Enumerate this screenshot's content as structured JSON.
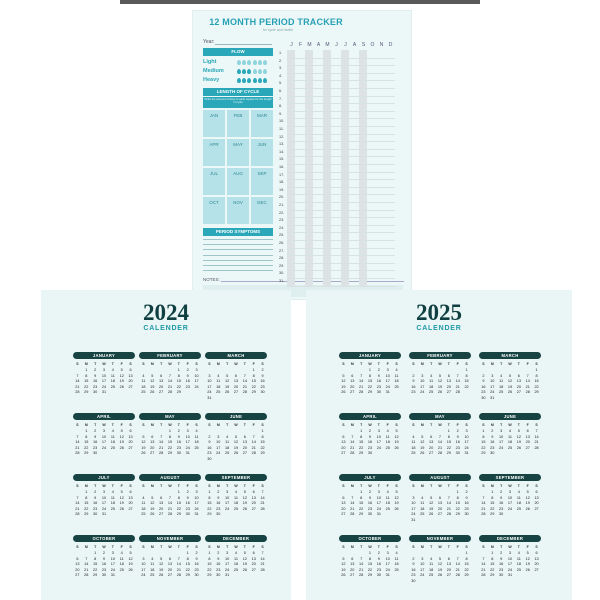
{
  "tracker": {
    "title": "12 MONTH PERIOD TRACKER",
    "subtitle": "for cycle and health",
    "year_label": "Year:",
    "flow_heading": "FLOW",
    "flow_levels": [
      "Light",
      "Medium",
      "Heavy"
    ],
    "cycle_heading": "LENGTH OF CYCLE",
    "cycle_note": "Write the amount of days in each square for the length of cycle",
    "months": [
      "JAN",
      "FEB",
      "MAR",
      "APR",
      "MAY",
      "JUN",
      "JUL",
      "AUG",
      "SEP",
      "OCT",
      "NOV",
      "DEC"
    ],
    "symptoms_heading": "PERIOD SYMPTOMS",
    "notes_label": "NOTES:",
    "grid_month_initials": [
      "J",
      "F",
      "M",
      "A",
      "M",
      "J",
      "J",
      "A",
      "S",
      "O",
      "N",
      "D"
    ],
    "day_count": 31,
    "shaded_columns": [
      0,
      2,
      4,
      6,
      8
    ]
  },
  "calendars": [
    {
      "year": "2024",
      "label": "CALENDER",
      "weekday_initials": [
        "S",
        "M",
        "T",
        "W",
        "T",
        "F",
        "S"
      ],
      "months": [
        {
          "name": "JANUARY",
          "start": 1,
          "days": 31
        },
        {
          "name": "FEBRUARY",
          "start": 4,
          "days": 29
        },
        {
          "name": "MARCH",
          "start": 5,
          "days": 31
        },
        {
          "name": "APRIL",
          "start": 1,
          "days": 30
        },
        {
          "name": "MAY",
          "start": 3,
          "days": 31
        },
        {
          "name": "JUNE",
          "start": 6,
          "days": 30
        },
        {
          "name": "JULY",
          "start": 1,
          "days": 31
        },
        {
          "name": "AUGUST",
          "start": 4,
          "days": 31
        },
        {
          "name": "SEPTEMBER",
          "start": 0,
          "days": 30
        },
        {
          "name": "OCTOBER",
          "start": 2,
          "days": 31
        },
        {
          "name": "NOVEMBER",
          "start": 5,
          "days": 30
        },
        {
          "name": "DECEMBER",
          "start": 0,
          "days": 31
        }
      ]
    },
    {
      "year": "2025",
      "label": "CALENDER",
      "weekday_initials": [
        "S",
        "M",
        "T",
        "W",
        "T",
        "F",
        "S"
      ],
      "months": [
        {
          "name": "JANUARY",
          "start": 3,
          "days": 31
        },
        {
          "name": "FEBRUARY",
          "start": 6,
          "days": 28
        },
        {
          "name": "MARCH",
          "start": 6,
          "days": 31
        },
        {
          "name": "APRIL",
          "start": 2,
          "days": 30
        },
        {
          "name": "MAY",
          "start": 4,
          "days": 31
        },
        {
          "name": "JUNE",
          "start": 0,
          "days": 30
        },
        {
          "name": "JULY",
          "start": 2,
          "days": 31
        },
        {
          "name": "AUGUST",
          "start": 5,
          "days": 31
        },
        {
          "name": "SEPTEMBER",
          "start": 1,
          "days": 30
        },
        {
          "name": "OCTOBER",
          "start": 3,
          "days": 31
        },
        {
          "name": "NOVEMBER",
          "start": 6,
          "days": 30
        },
        {
          "name": "DECEMBER",
          "start": 1,
          "days": 31
        }
      ]
    }
  ],
  "colors": {
    "teal": "#2aa7b8",
    "dark_teal": "#174443",
    "page_bg": "#eaf5f5"
  }
}
